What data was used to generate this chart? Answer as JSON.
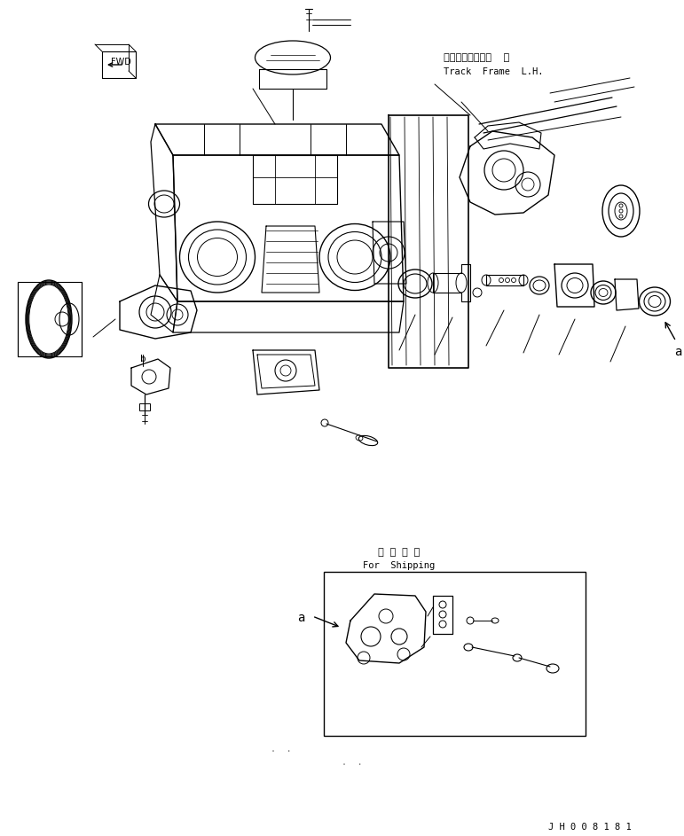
{
  "bg_color": "#ffffff",
  "line_color": "#000000",
  "fig_width": 7.71,
  "fig_height": 9.43,
  "title_jp": "トラックフレーム  左",
  "title_en": "Track  Frame  L.H.",
  "label_fwd": "FWD",
  "label_shipping_jp": "連 携 部 品",
  "label_shipping_en": "For  Shipping",
  "label_a": "a",
  "label_b": "b",
  "part_id": "J H 0 0 8 1 8 1"
}
